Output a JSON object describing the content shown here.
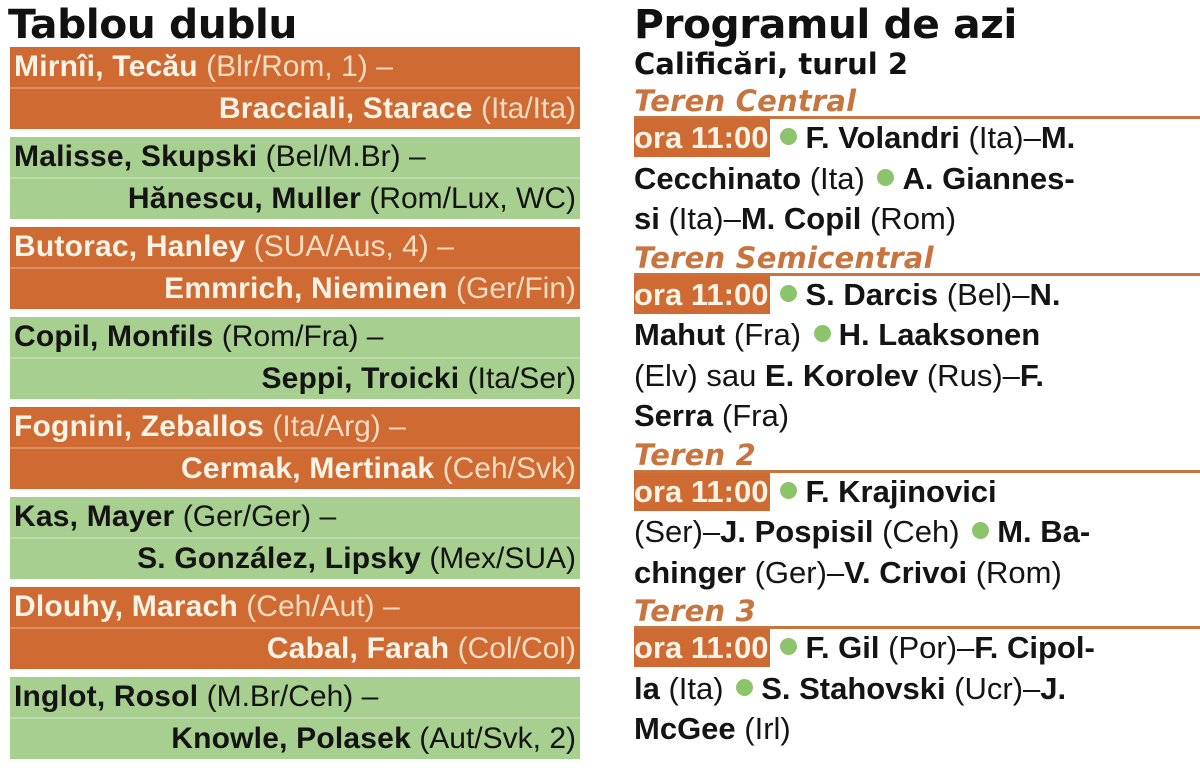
{
  "left": {
    "title": "Tablou dublu",
    "colors": {
      "orange": "#cf6a33",
      "green": "#a7cf8f"
    },
    "matches": [
      {
        "color": "orange",
        "team1": "Mirnîi, Tecău",
        "team1_meta": " (Blr/Rom, 1) –",
        "team2": "Bracciali, Starace",
        "team2_meta": " (Ita/Ita)"
      },
      {
        "color": "green",
        "team1": "Malisse, Skupski",
        "team1_meta": " (Bel/M.Br) –",
        "team2": "Hănescu, Muller",
        "team2_meta": " (Rom/Lux, WC)"
      },
      {
        "color": "orange",
        "team1": "Butorac, Hanley",
        "team1_meta": " (SUA/Aus, 4) –",
        "team2": "Emmrich, Nieminen",
        "team2_meta": " (Ger/Fin)"
      },
      {
        "color": "green",
        "team1": "Copil, Monfils",
        "team1_meta": " (Rom/Fra) –",
        "team2": "Seppi, Troicki",
        "team2_meta": " (Ita/Ser)"
      },
      {
        "color": "orange",
        "team1": "Fognini, Zeballos",
        "team1_meta": " (Ita/Arg) –",
        "team2": "Cermak, Mertinak",
        "team2_meta": " (Ceh/Svk)"
      },
      {
        "color": "green",
        "team1": "Kas, Mayer",
        "team1_meta": " (Ger/Ger) –",
        "team2": "S. González, Lipsky",
        "team2_meta": " (Mex/SUA)"
      },
      {
        "color": "orange",
        "team1": "Dlouhy, Marach",
        "team1_meta": " (Ceh/Aut) –",
        "team2": "Cabal, Farah",
        "team2_meta": " (Col/Col)"
      },
      {
        "color": "green",
        "team1": "Inglot, Rosol",
        "team1_meta": " (M.Br/Ceh) –",
        "team2": "Knowle, Polasek",
        "team2_meta": " (Aut/Svk, 2)"
      }
    ]
  },
  "right": {
    "title": "Programul de azi",
    "subtitle": "Calificări, turul 2",
    "courts": [
      {
        "name": "Teren Central",
        "time": "ora 11:00",
        "lines": [
          [
            "F. Volandri",
            " (Ita)–",
            "M."
          ],
          [
            "Cecchinato",
            " (Ita) ",
            "A. Giannes-"
          ],
          [
            "si",
            " (Ita)–",
            "M. Copil",
            " (Rom)"
          ]
        ]
      },
      {
        "name": "Teren Semicentral",
        "time": "ora 11:00",
        "lines": [
          [
            "S. Darcis",
            " (Bel)–",
            "N."
          ],
          [
            "Mahut",
            " (Fra) ",
            "H. Laaksonen"
          ],
          [
            "(Elv) sau ",
            "E. Korolev",
            " (Rus)–",
            "F."
          ],
          [
            "Serra",
            " (Fra)"
          ]
        ]
      },
      {
        "name": "Teren 2",
        "time": "ora 11:00",
        "lines": [
          [
            "F. Krajinovici"
          ],
          [
            "(Ser)–",
            "J. Pospisil",
            " (Ceh) ",
            "M. Ba-"
          ],
          [
            "chinger",
            " (Ger)–",
            "V. Crivoi",
            " (Rom)"
          ]
        ]
      },
      {
        "name": "Teren 3",
        "time": "ora 11:00",
        "lines": [
          [
            "F. Gil",
            " (Por)–",
            "F. Cipol-"
          ],
          [
            "la",
            " (Ita) ",
            "S. Stahovski",
            " (Ucr)–",
            "J."
          ],
          [
            "McGee",
            " (Irl)"
          ]
        ]
      }
    ],
    "colors": {
      "court_heading": "#c8743e",
      "time_badge": "#cf6a33",
      "bullet": "#8cc46c"
    }
  }
}
